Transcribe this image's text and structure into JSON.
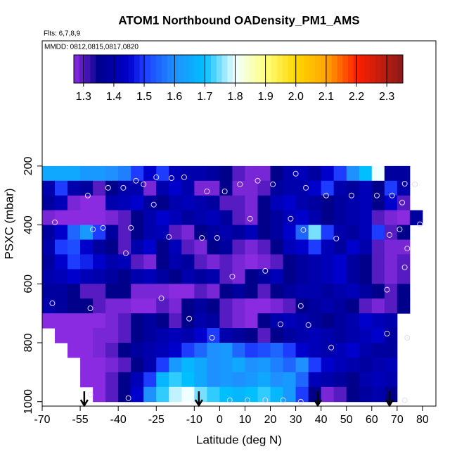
{
  "chart_data": {
    "type": "heatmap",
    "title": "ATOM1 Northbound OADensity_PM1_AMS",
    "subtitle": "Flts: 6,7,8,9",
    "annotation": "MMDD: 0812,0815,0817,0820",
    "xlabel": "Latitude (deg N)",
    "ylabel": "PSXC (mbar)",
    "xlim": [
      -70,
      85.3
    ],
    "ylim": [
      1015,
      -225
    ],
    "xticks": [
      -70,
      -55,
      -40,
      -25,
      -10,
      0,
      10,
      20,
      30,
      40,
      50,
      60,
      70,
      80
    ],
    "yticks": [
      200,
      400,
      600,
      800,
      1000
    ],
    "xbins": [
      -70,
      -65,
      -60,
      -55,
      -50,
      -45,
      -40,
      -35,
      -30,
      -25,
      -20,
      -15,
      -10,
      -5,
      0,
      5,
      10,
      15,
      20,
      25,
      30,
      35,
      40,
      45,
      50,
      55,
      60,
      65,
      70,
      75,
      80
    ],
    "ybins": [
      200,
      250,
      300,
      350,
      400,
      450,
      500,
      550,
      600,
      650,
      700,
      750,
      800,
      850,
      900,
      950,
      1000
    ],
    "values": [
      [
        1.65,
        1.65,
        1.65,
        1.62,
        1.62,
        1.6,
        1.58,
        1.5,
        1.45,
        1.5,
        1.42,
        1.4,
        1.4,
        1.38,
        1.35,
        1.3,
        1.28,
        1.28,
        1.35,
        1.4,
        1.42,
        1.38,
        1.45,
        1.5,
        1.6,
        1.7,
        1.8,
        1.38,
        1.38,
        null
      ],
      [
        1.4,
        1.5,
        1.4,
        1.38,
        1.3,
        1.35,
        1.4,
        1.4,
        1.28,
        1.4,
        1.45,
        1.4,
        1.28,
        1.28,
        1.35,
        1.28,
        1.28,
        1.3,
        1.38,
        1.4,
        1.4,
        1.45,
        1.5,
        1.4,
        1.38,
        1.42,
        1.35,
        1.5,
        1.4,
        null
      ],
      [
        1.38,
        1.42,
        1.28,
        1.27,
        1.27,
        1.4,
        1.42,
        1.45,
        1.38,
        1.35,
        1.4,
        1.42,
        1.4,
        1.38,
        1.3,
        1.3,
        1.28,
        1.35,
        1.42,
        1.45,
        1.4,
        1.38,
        1.35,
        1.38,
        1.4,
        1.42,
        1.35,
        1.45,
        1.3,
        null
      ],
      [
        1.28,
        1.27,
        1.27,
        1.27,
        1.27,
        1.28,
        1.3,
        1.35,
        1.4,
        1.45,
        1.42,
        1.38,
        1.4,
        1.42,
        1.38,
        1.3,
        1.28,
        1.35,
        1.38,
        1.42,
        1.45,
        1.4,
        1.35,
        1.38,
        1.4,
        1.42,
        1.3,
        1.28,
        1.27,
        1.38
      ],
      [
        1.38,
        1.45,
        1.55,
        1.62,
        1.5,
        1.38,
        1.3,
        1.35,
        1.4,
        1.42,
        1.3,
        1.28,
        1.35,
        1.38,
        1.4,
        1.38,
        1.42,
        1.35,
        1.38,
        1.45,
        1.55,
        1.75,
        1.5,
        1.4,
        1.38,
        1.42,
        1.5,
        1.3,
        1.35,
        null
      ],
      [
        1.4,
        1.5,
        1.52,
        1.45,
        1.38,
        1.35,
        1.3,
        1.4,
        1.45,
        1.35,
        1.42,
        1.3,
        1.28,
        1.35,
        1.38,
        1.3,
        1.28,
        1.3,
        1.35,
        1.42,
        1.45,
        1.5,
        1.42,
        1.38,
        1.45,
        1.4,
        1.3,
        1.28,
        1.28,
        null
      ],
      [
        1.38,
        1.45,
        1.5,
        1.48,
        1.45,
        1.4,
        1.42,
        1.3,
        1.28,
        1.35,
        1.4,
        1.38,
        1.3,
        1.28,
        1.3,
        1.28,
        1.27,
        1.28,
        1.3,
        1.35,
        1.38,
        1.4,
        1.42,
        1.45,
        1.38,
        1.35,
        1.3,
        1.28,
        1.3,
        null
      ],
      [
        1.4,
        1.42,
        1.45,
        1.42,
        1.4,
        1.38,
        1.35,
        1.4,
        1.42,
        1.38,
        1.35,
        1.4,
        1.38,
        1.4,
        1.3,
        1.28,
        1.35,
        1.38,
        1.42,
        1.35,
        1.38,
        1.4,
        1.42,
        1.45,
        1.38,
        1.35,
        1.3,
        1.28,
        1.3,
        null
      ],
      [
        1.38,
        1.38,
        1.35,
        1.3,
        1.3,
        1.35,
        1.35,
        1.28,
        1.28,
        1.28,
        1.27,
        1.27,
        1.3,
        1.28,
        1.35,
        1.38,
        1.35,
        1.3,
        1.35,
        1.38,
        1.4,
        1.4,
        1.38,
        1.4,
        1.42,
        1.38,
        1.35,
        1.3,
        1.35,
        null
      ],
      [
        1.4,
        1.38,
        1.35,
        1.35,
        1.3,
        1.28,
        1.28,
        1.27,
        1.27,
        1.3,
        1.28,
        1.35,
        1.38,
        1.35,
        1.3,
        1.28,
        1.27,
        1.27,
        1.28,
        1.3,
        1.35,
        1.38,
        1.4,
        1.38,
        1.35,
        1.3,
        1.28,
        1.3,
        1.35,
        null
      ],
      [
        1.27,
        1.27,
        1.27,
        1.27,
        1.27,
        1.28,
        1.3,
        1.35,
        1.38,
        1.35,
        1.3,
        1.35,
        1.4,
        1.38,
        1.3,
        1.28,
        1.27,
        1.35,
        1.4,
        1.42,
        1.4,
        1.38,
        1.35,
        1.38,
        1.4,
        1.45,
        1.42,
        1.4,
        null,
        null
      ],
      [
        null,
        1.27,
        1.27,
        1.27,
        1.28,
        1.28,
        1.3,
        1.35,
        1.38,
        1.4,
        1.42,
        1.4,
        1.45,
        1.5,
        1.4,
        1.38,
        1.35,
        1.3,
        1.35,
        1.38,
        1.4,
        1.42,
        1.4,
        1.38,
        1.4,
        1.42,
        1.45,
        1.38,
        null,
        null
      ],
      [
        null,
        null,
        1.27,
        1.27,
        1.28,
        1.3,
        1.35,
        1.38,
        1.4,
        1.42,
        1.45,
        1.5,
        1.55,
        1.6,
        1.62,
        1.55,
        1.5,
        1.52,
        1.55,
        1.5,
        1.45,
        1.42,
        1.4,
        1.42,
        1.45,
        1.4,
        1.38,
        1.38,
        null,
        null
      ],
      [
        null,
        null,
        null,
        1.27,
        1.27,
        1.28,
        1.3,
        1.35,
        1.4,
        1.5,
        1.62,
        1.68,
        1.65,
        1.6,
        1.62,
        1.65,
        1.6,
        1.62,
        1.58,
        1.55,
        1.6,
        1.5,
        1.45,
        1.42,
        1.4,
        1.38,
        1.4,
        1.42,
        null,
        null
      ],
      [
        null,
        null,
        null,
        1.27,
        1.27,
        1.3,
        1.35,
        1.42,
        1.5,
        1.68,
        1.72,
        1.7,
        1.65,
        1.6,
        1.62,
        1.6,
        1.62,
        1.65,
        1.6,
        1.62,
        1.55,
        1.42,
        1.4,
        1.38,
        1.35,
        1.4,
        1.42,
        1.4,
        null,
        null
      ],
      [
        null,
        null,
        null,
        null,
        1.27,
        1.3,
        1.35,
        1.45,
        1.6,
        1.72,
        1.78,
        1.8,
        1.75,
        1.72,
        1.7,
        1.68,
        1.7,
        1.72,
        1.68,
        1.62,
        1.5,
        1.35,
        1.28,
        1.3,
        1.35,
        1.38,
        1.4,
        1.35,
        null,
        null
      ]
    ],
    "colorscale": [
      [
        1.27,
        "#8a2be2"
      ],
      [
        1.35,
        "#00008b"
      ],
      [
        1.45,
        "#0000cd"
      ],
      [
        1.5,
        "#1e3cff"
      ],
      [
        1.6,
        "#1e90ff"
      ],
      [
        1.7,
        "#00bfff"
      ],
      [
        1.8,
        "#f0ffff"
      ],
      [
        1.9,
        "#ffff80"
      ],
      [
        2.0,
        "#ffd700"
      ],
      [
        2.1,
        "#ffa500"
      ],
      [
        2.2,
        "#ff2000"
      ],
      [
        2.35,
        "#8b1a1a"
      ]
    ],
    "colorbar_lim": [
      1.268,
      2.353
    ],
    "colorbar_ticks": [
      1.3,
      1.4,
      1.5,
      1.6,
      1.7,
      1.8,
      1.9,
      {
        "value": 2,
        "label": "2.0"
      },
      2.1,
      2.2,
      2.3
    ],
    "scatter": {
      "x": [
        -33,
        -30,
        -25,
        -19,
        -14,
        -5,
        2,
        8,
        15,
        21,
        30,
        34,
        42,
        52,
        62,
        68,
        73,
        77,
        72,
        -52,
        -44,
        -38,
        -26,
        -65,
        -50,
        -46,
        -35,
        -20,
        -7,
        -1,
        12,
        28,
        33,
        46,
        67,
        71,
        79,
        74,
        -37,
        18,
        5,
        73,
        66,
        -66,
        -23,
        32,
        -51,
        -12,
        24,
        35,
        -3,
        66,
        74,
        44,
        -51,
        -36,
        4,
        11,
        18,
        25,
        32,
        73
      ],
      "y": [
        250,
        262,
        238,
        241,
        238,
        286,
        286,
        262,
        250,
        262,
        226,
        274,
        300,
        300,
        300,
        300,
        260,
        262,
        324,
        300,
        274,
        274,
        331,
        391,
        415,
        410,
        410,
        441,
        444,
        444,
        379,
        379,
        417,
        446,
        434,
        415,
        398,
        480,
        496,
        556,
        575,
        544,
        620,
        666,
        649,
        675,
        683,
        718,
        737,
        740,
        783,
        769,
        783,
        816,
        976,
        988,
        995,
        995,
        995,
        995,
        1000,
        995
      ],
      "color": "#e6d8ff"
    },
    "arrows": [
      -53.4,
      -8.2,
      38.7,
      67
    ]
  }
}
